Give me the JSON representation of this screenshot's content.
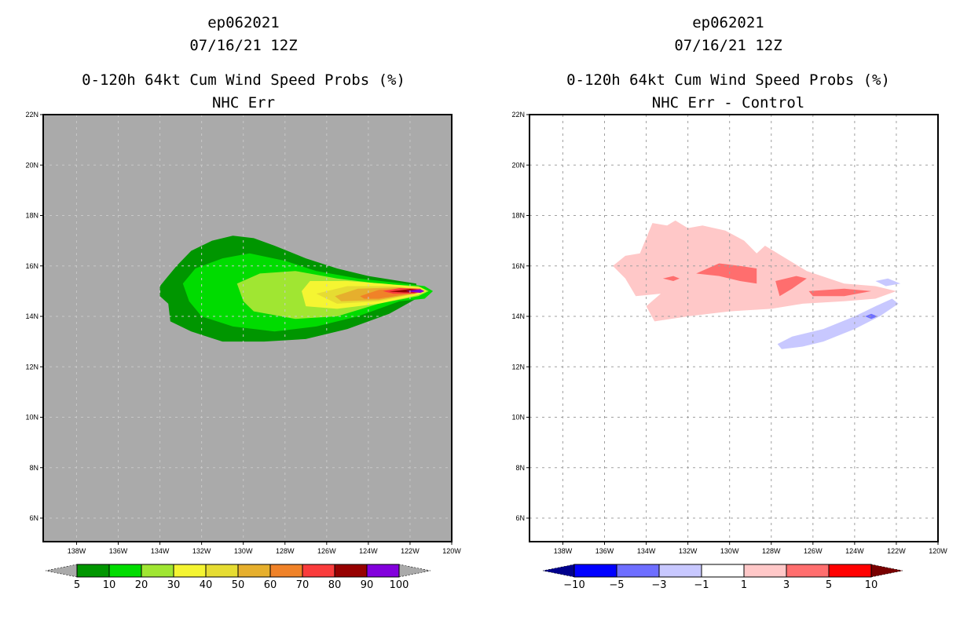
{
  "panels": [
    {
      "id": "left",
      "title_lines": [
        "ep062021",
        "07/16/21 12Z",
        "0-120h 64kt Cum Wind Speed Probs (%)",
        "NHC Err"
      ],
      "background": "#aaaaaa",
      "grid": "dashed-light"
    },
    {
      "id": "right",
      "title_lines": [
        "ep062021",
        "07/16/21 12Z",
        "0-120h 64kt Cum Wind Speed Probs (%)",
        "NHC Err - Control"
      ],
      "background": "#ffffff",
      "grid": "dashed-gray"
    }
  ],
  "chart_data": [
    {
      "type": "heatmap",
      "title": "ep062021 07/16/21 12Z — 0-120h 64kt Cum Wind Speed Probs (%) — NHC Err",
      "x_axis": {
        "label": "",
        "range": [
          -139.6,
          -120
        ],
        "ticks": [
          "138W",
          "136W",
          "134W",
          "132W",
          "130W",
          "128W",
          "126W",
          "124W",
          "122W",
          "120W"
        ],
        "tick_values": [
          -138,
          -136,
          -134,
          -132,
          -130,
          -128,
          -126,
          -124,
          -122,
          -120
        ]
      },
      "y_axis": {
        "label": "",
        "range": [
          5,
          22
        ],
        "ticks": [
          "6N",
          "8N",
          "10N",
          "12N",
          "14N",
          "16N",
          "18N",
          "20N",
          "22N"
        ],
        "tick_values": [
          6,
          8,
          10,
          12,
          14,
          16,
          18,
          20,
          22
        ]
      },
      "colorbar": {
        "levels": [
          "5",
          "10",
          "20",
          "30",
          "40",
          "50",
          "60",
          "70",
          "80",
          "90",
          "100"
        ],
        "colors": [
          "#009600",
          "#00dc00",
          "#a0e632",
          "#f5f532",
          "#e6dc32",
          "#e6af2d",
          "#f08228",
          "#fa3c3c",
          "#960000",
          "#8200dc"
        ],
        "under_color": "#aaaaaa",
        "over_color": "#aaaaaa"
      },
      "contours": [
        {
          "level": 5,
          "color": "#009600",
          "polygon": [
            [
              -133.7,
              15.5
            ],
            [
              -133.2,
              16.0
            ],
            [
              -132.5,
              16.6
            ],
            [
              -131.5,
              17.0
            ],
            [
              -130.5,
              17.2
            ],
            [
              -129.5,
              17.1
            ],
            [
              -128.5,
              16.8
            ],
            [
              -127.0,
              16.3
            ],
            [
              -125.5,
              15.9
            ],
            [
              -124.0,
              15.6
            ],
            [
              -122.5,
              15.4
            ],
            [
              -121.7,
              15.3
            ],
            [
              -121.7,
              14.7
            ],
            [
              -123.0,
              14.1
            ],
            [
              -125.0,
              13.5
            ],
            [
              -127.0,
              13.1
            ],
            [
              -129.0,
              13.0
            ],
            [
              -131.0,
              13.0
            ],
            [
              -132.5,
              13.4
            ],
            [
              -133.5,
              13.8
            ],
            [
              -133.6,
              14.5
            ],
            [
              -134.0,
              14.8
            ],
            [
              -134.0,
              15.2
            ]
          ]
        },
        {
          "level": 10,
          "color": "#00dc00",
          "polygon": [
            [
              -132.9,
              15.3
            ],
            [
              -132.3,
              15.9
            ],
            [
              -131.0,
              16.3
            ],
            [
              -129.7,
              16.5
            ],
            [
              -128.0,
              16.2
            ],
            [
              -126.5,
              15.8
            ],
            [
              -124.5,
              15.5
            ],
            [
              -122.3,
              15.3
            ],
            [
              -121.3,
              15.2
            ],
            [
              -120.9,
              15.0
            ],
            [
              -121.3,
              14.7
            ],
            [
              -122.5,
              14.6
            ],
            [
              -124.5,
              14.0
            ],
            [
              -126.5,
              13.6
            ],
            [
              -128.5,
              13.4
            ],
            [
              -130.5,
              13.6
            ],
            [
              -132.0,
              14.0
            ],
            [
              -132.6,
              14.6
            ]
          ]
        },
        {
          "level": 20,
          "color": "#a0e632",
          "polygon": [
            [
              -130.3,
              15.3
            ],
            [
              -129.2,
              15.7
            ],
            [
              -127.5,
              15.8
            ],
            [
              -125.5,
              15.5
            ],
            [
              -123.5,
              15.3
            ],
            [
              -121.6,
              15.2
            ],
            [
              -121.1,
              15.0
            ],
            [
              -121.6,
              14.8
            ],
            [
              -123.5,
              14.5
            ],
            [
              -125.5,
              14.0
            ],
            [
              -127.5,
              13.9
            ],
            [
              -129.5,
              14.2
            ],
            [
              -130.0,
              14.6
            ]
          ]
        },
        {
          "level": 30,
          "color": "#f5f532",
          "polygon": [
            [
              -127.2,
              15.0
            ],
            [
              -126.8,
              15.4
            ],
            [
              -125.0,
              15.4
            ],
            [
              -123.3,
              15.3
            ],
            [
              -121.5,
              15.15
            ],
            [
              -121.2,
              15.0
            ],
            [
              -121.6,
              14.85
            ],
            [
              -123.5,
              14.5
            ],
            [
              -125.5,
              14.3
            ],
            [
              -127.0,
              14.4
            ]
          ]
        },
        {
          "level": 40,
          "color": "#e6dc32",
          "polygon": [
            [
              -126.5,
              14.9
            ],
            [
              -125.0,
              15.2
            ],
            [
              -123.0,
              15.2
            ],
            [
              -121.5,
              15.1
            ],
            [
              -121.3,
              15.0
            ],
            [
              -121.7,
              14.9
            ],
            [
              -123.5,
              14.6
            ],
            [
              -125.5,
              14.5
            ]
          ]
        },
        {
          "level": 50,
          "color": "#e6af2d",
          "polygon": [
            [
              -125.6,
              14.8
            ],
            [
              -124.5,
              15.1
            ],
            [
              -122.5,
              15.15
            ],
            [
              -121.4,
              15.05
            ],
            [
              -121.8,
              14.9
            ],
            [
              -123.5,
              14.65
            ],
            [
              -125.3,
              14.6
            ]
          ]
        },
        {
          "level": 60,
          "color": "#f08228",
          "polygon": [
            [
              -124.4,
              14.8
            ],
            [
              -123.5,
              15.05
            ],
            [
              -122.0,
              15.1
            ],
            [
              -121.4,
              15.02
            ],
            [
              -122.0,
              14.9
            ],
            [
              -123.5,
              14.7
            ],
            [
              -124.2,
              14.7
            ]
          ]
        },
        {
          "level": 70,
          "color": "#fa3c3c",
          "polygon": [
            [
              -123.3,
              15.0
            ],
            [
              -122.5,
              15.12
            ],
            [
              -121.5,
              15.1
            ],
            [
              -121.4,
              15.0
            ],
            [
              -121.8,
              14.9
            ],
            [
              -122.8,
              14.9
            ]
          ]
        },
        {
          "level": 80,
          "color": "#960000",
          "polygon": [
            [
              -123.0,
              14.98
            ],
            [
              -122.0,
              15.08
            ],
            [
              -121.5,
              15.05
            ],
            [
              -121.5,
              14.95
            ],
            [
              -122.3,
              14.95
            ]
          ]
        },
        {
          "level": 90,
          "color": "#8200dc",
          "polygon": [
            [
              -122.2,
              15.0
            ],
            [
              -121.5,
              15.07
            ],
            [
              -121.3,
              15.0
            ],
            [
              -121.5,
              14.93
            ]
          ]
        }
      ]
    },
    {
      "type": "heatmap",
      "title": "ep062021 07/16/21 12Z — 0-120h 64kt Cum Wind Speed Probs (%) — NHC Err - Control",
      "x_axis": {
        "label": "",
        "range": [
          -139.6,
          -120
        ],
        "ticks": [
          "138W",
          "136W",
          "134W",
          "132W",
          "130W",
          "128W",
          "126W",
          "124W",
          "122W",
          "120W"
        ],
        "tick_values": [
          -138,
          -136,
          -134,
          -132,
          -130,
          -128,
          -126,
          -124,
          -122,
          -120
        ]
      },
      "y_axis": {
        "label": "",
        "range": [
          5,
          22
        ],
        "ticks": [
          "6N",
          "8N",
          "10N",
          "12N",
          "14N",
          "16N",
          "18N",
          "20N",
          "22N"
        ],
        "tick_values": [
          6,
          8,
          10,
          12,
          14,
          16,
          18,
          20,
          22
        ]
      },
      "colorbar": {
        "levels": [
          "-10",
          "-5",
          "-3",
          "-1",
          "1",
          "3",
          "5",
          "10"
        ],
        "colors": [
          "#0000ff",
          "#6e6eff",
          "#c8c8ff",
          "#ffffff",
          "#ffc8c8",
          "#ff6e6e",
          "#ff0000"
        ],
        "under_color": "#00008c",
        "over_color": "#780000"
      },
      "contours": [
        {
          "level": 1,
          "color": "#ffc8c8",
          "polygon": [
            [
              -135.6,
              16.0
            ],
            [
              -135.0,
              16.4
            ],
            [
              -134.3,
              16.5
            ],
            [
              -133.7,
              17.7
            ],
            [
              -133.0,
              17.6
            ],
            [
              -132.6,
              17.8
            ],
            [
              -132.0,
              17.5
            ],
            [
              -131.3,
              17.6
            ],
            [
              -130.2,
              17.4
            ],
            [
              -129.3,
              17.0
            ],
            [
              -128.7,
              16.5
            ],
            [
              -128.3,
              16.8
            ],
            [
              -127.3,
              16.3
            ],
            [
              -126.3,
              15.8
            ],
            [
              -124.5,
              15.3
            ],
            [
              -123.0,
              15.2
            ],
            [
              -122.0,
              15.0
            ],
            [
              -123.0,
              14.7
            ],
            [
              -124.5,
              14.6
            ],
            [
              -126.5,
              14.5
            ],
            [
              -128.0,
              14.3
            ],
            [
              -130.0,
              14.2
            ],
            [
              -132.0,
              14.0
            ],
            [
              -133.6,
              13.8
            ],
            [
              -134.0,
              14.4
            ],
            [
              -133.3,
              14.9
            ],
            [
              -134.5,
              14.8
            ],
            [
              -135.0,
              15.5
            ]
          ]
        },
        {
          "level": 3,
          "color": "#ff6e6e",
          "polygon": [
            [
              -131.6,
              15.7
            ],
            [
              -130.5,
              16.1
            ],
            [
              -129.5,
              16.0
            ],
            [
              -128.7,
              15.9
            ],
            [
              -128.7,
              15.3
            ],
            [
              -129.5,
              15.4
            ],
            [
              -130.5,
              15.6
            ]
          ]
        },
        {
          "level": 3,
          "color": "#ff6e6e",
          "polygon": [
            [
              -127.8,
              15.4
            ],
            [
              -126.8,
              15.6
            ],
            [
              -126.3,
              15.5
            ],
            [
              -127.0,
              15.1
            ],
            [
              -127.6,
              14.8
            ]
          ]
        },
        {
          "level": 3,
          "color": "#ff6e6e",
          "polygon": [
            [
              -126.2,
              15.0
            ],
            [
              -124.5,
              15.1
            ],
            [
              -123.2,
              15.0
            ],
            [
              -124.5,
              14.8
            ],
            [
              -126.0,
              14.8
            ]
          ]
        },
        {
          "level": 3,
          "color": "#ff6e6e",
          "polygon": [
            [
              -133.2,
              15.5
            ],
            [
              -132.7,
              15.6
            ],
            [
              -132.4,
              15.5
            ],
            [
              -132.7,
              15.4
            ]
          ]
        },
        {
          "level": -1,
          "color": "#c8c8ff",
          "polygon": [
            [
              -127.7,
              12.9
            ],
            [
              -127.0,
              13.2
            ],
            [
              -125.5,
              13.5
            ],
            [
              -124.0,
              14.0
            ],
            [
              -123.0,
              14.4
            ],
            [
              -122.2,
              14.7
            ],
            [
              -121.9,
              14.5
            ],
            [
              -122.8,
              14.0
            ],
            [
              -124.0,
              13.5
            ],
            [
              -125.5,
              13.0
            ],
            [
              -126.5,
              12.8
            ],
            [
              -127.5,
              12.7
            ]
          ]
        },
        {
          "level": -1,
          "color": "#c8c8ff",
          "polygon": [
            [
              -123.0,
              15.4
            ],
            [
              -122.4,
              15.5
            ],
            [
              -121.8,
              15.3
            ],
            [
              -122.5,
              15.2
            ]
          ]
        },
        {
          "level": -3,
          "color": "#6e6eff",
          "polygon": [
            [
              -123.5,
              14.0
            ],
            [
              -123.2,
              14.1
            ],
            [
              -122.9,
              14.0
            ],
            [
              -123.2,
              13.9
            ]
          ]
        }
      ]
    }
  ]
}
